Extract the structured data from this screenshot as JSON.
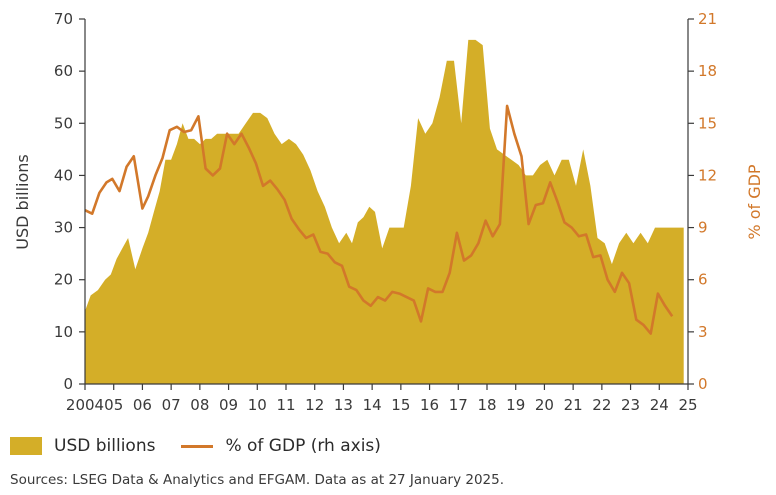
{
  "chart_data": {
    "type": "area+line",
    "colors": {
      "area": "#d4ae28",
      "line": "#d2782a",
      "axis": "#3a3a3a"
    },
    "x_tick_labels": [
      "2004",
      "05",
      "06",
      "07",
      "08",
      "09",
      "10",
      "11",
      "12",
      "13",
      "14",
      "15",
      "16",
      "17",
      "18",
      "19",
      "20",
      "21",
      "22",
      "23",
      "24",
      "25"
    ],
    "y_left": {
      "label": "USD billions",
      "lim": [
        0,
        70
      ],
      "ticks": [
        0,
        10,
        20,
        30,
        40,
        50,
        60,
        70
      ]
    },
    "y_right": {
      "label": "% of GDP",
      "lim": [
        0,
        21
      ],
      "ticks": [
        0,
        3,
        6,
        9,
        12,
        15,
        18,
        21
      ]
    },
    "grid": false,
    "legend": {
      "position": "bottom-left",
      "area_label": "USD billions",
      "line_label": "% of GDP (rh axis)"
    },
    "series": [
      {
        "name": "USD billions",
        "kind": "area",
        "axis": "left",
        "x": [
          2004.0,
          2004.2,
          2004.45,
          2004.7,
          2004.9,
          2005.1,
          2005.3,
          2005.5,
          2005.75,
          2006.0,
          2006.2,
          2006.4,
          2006.6,
          2006.8,
          2007.0,
          2007.2,
          2007.4,
          2007.6,
          2007.8,
          2008.0,
          2008.2,
          2008.4,
          2008.6,
          2008.85,
          2009.1,
          2009.35,
          2009.6,
          2009.85,
          2010.1,
          2010.35,
          2010.6,
          2010.85,
          2011.1,
          2011.35,
          2011.6,
          2011.85,
          2012.1,
          2012.35,
          2012.6,
          2012.85,
          2013.1,
          2013.3,
          2013.5,
          2013.7,
          2013.9,
          2014.1,
          2014.35,
          2014.6,
          2014.85,
          2015.1,
          2015.35,
          2015.6,
          2015.85,
          2016.1,
          2016.35,
          2016.6,
          2016.85,
          2017.1,
          2017.35,
          2017.6,
          2017.85,
          2018.1,
          2018.35,
          2018.6,
          2018.85,
          2019.1,
          2019.35,
          2019.6,
          2019.85,
          2020.1,
          2020.35,
          2020.6,
          2020.85,
          2021.1,
          2021.35,
          2021.6,
          2021.85,
          2022.1,
          2022.35,
          2022.6,
          2022.85,
          2023.1,
          2023.35,
          2023.6,
          2023.85,
          2024.1,
          2024.35,
          2024.6,
          2024.85
        ],
        "values": [
          14,
          17,
          18,
          20,
          21,
          24,
          26,
          28,
          22,
          26,
          29,
          33,
          37,
          43,
          43,
          46,
          50,
          47,
          47,
          46,
          47,
          47,
          48,
          48,
          48,
          48,
          50,
          52,
          52,
          51,
          48,
          46,
          47,
          46,
          44,
          41,
          37,
          34,
          30,
          27,
          29,
          27,
          31,
          32,
          34,
          33,
          26,
          30,
          30,
          30,
          38,
          51,
          48,
          50,
          55,
          62,
          62,
          50,
          66,
          66,
          65,
          49,
          45,
          44,
          43,
          42,
          40,
          40,
          42,
          43,
          40,
          43,
          43,
          38,
          45,
          38,
          28,
          27,
          23,
          27,
          29,
          27,
          29,
          27,
          30,
          30,
          30,
          30,
          30
        ],
        "values_note": "shape approximate"
      },
      {
        "name": "% of GDP (rh axis)",
        "kind": "line",
        "axis": "right",
        "x": [
          2004.0,
          2004.25,
          2004.5,
          2004.75,
          2004.95,
          2005.2,
          2005.45,
          2005.7,
          2006.0,
          2006.2,
          2006.45,
          2006.7,
          2006.95,
          2007.2,
          2007.45,
          2007.7,
          2007.95,
          2008.2,
          2008.45,
          2008.7,
          2008.95,
          2009.2,
          2009.45,
          2009.7,
          2009.95,
          2010.2,
          2010.45,
          2010.7,
          2010.95,
          2011.2,
          2011.45,
          2011.7,
          2011.95,
          2012.2,
          2012.45,
          2012.7,
          2012.95,
          2013.2,
          2013.45,
          2013.7,
          2013.95,
          2014.2,
          2014.45,
          2014.7,
          2014.95,
          2015.2,
          2015.45,
          2015.7,
          2015.95,
          2016.2,
          2016.45,
          2016.7,
          2016.95,
          2017.2,
          2017.45,
          2017.7,
          2017.95,
          2018.2,
          2018.45,
          2018.7,
          2018.95,
          2019.2,
          2019.45,
          2019.7,
          2019.95,
          2020.2,
          2020.45,
          2020.7,
          2020.95,
          2021.2,
          2021.45,
          2021.7,
          2021.95,
          2022.2,
          2022.45,
          2022.7,
          2022.95,
          2023.2,
          2023.45,
          2023.7,
          2023.95,
          2024.2,
          2024.45
        ],
        "values": [
          10.0,
          9.8,
          11.0,
          11.6,
          11.8,
          11.1,
          12.5,
          13.1,
          10.1,
          10.8,
          12.0,
          13.0,
          14.6,
          14.8,
          14.5,
          14.6,
          15.4,
          12.4,
          12.0,
          12.4,
          14.4,
          13.8,
          14.4,
          13.6,
          12.7,
          11.4,
          11.7,
          11.2,
          10.6,
          9.5,
          8.9,
          8.4,
          8.6,
          7.6,
          7.5,
          7.0,
          6.8,
          5.6,
          5.4,
          4.8,
          4.5,
          5.0,
          4.8,
          5.3,
          5.2,
          5.0,
          4.8,
          3.6,
          5.5,
          5.3,
          5.3,
          6.4,
          8.7,
          7.1,
          7.4,
          8.1,
          9.4,
          8.5,
          9.2,
          16.0,
          14.4,
          13.1,
          9.2,
          10.3,
          10.4,
          11.6,
          10.5,
          9.3,
          9.0,
          8.5,
          8.6,
          7.3,
          7.4,
          6.0,
          5.3,
          6.4,
          5.8,
          3.7,
          3.4,
          2.9,
          5.2,
          4.5,
          3.9
        ]
      }
    ]
  },
  "source_text": "Sources: LSEG Data & Analytics and EFGAM. Data as at 27 January 2025."
}
